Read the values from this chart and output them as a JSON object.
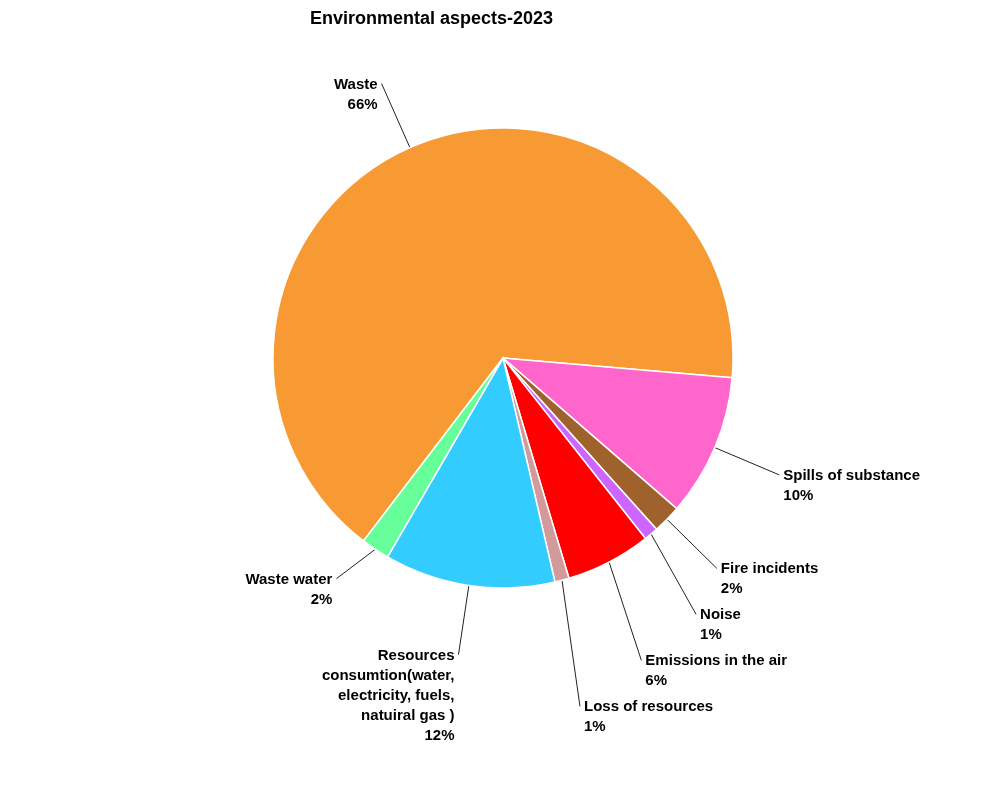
{
  "chart_data": {
    "type": "pie",
    "title": "Environmental aspects-2023",
    "categories": [
      "Waste",
      "Spills of substance",
      "Fire incidents",
      "Noise",
      "Emissions in the air",
      "Loss of resources",
      "Resources consumtion(water, electricity, fuels, natuiral gas )",
      "Waste water"
    ],
    "values": [
      66,
      10,
      2,
      1,
      6,
      1,
      12,
      2
    ],
    "value_labels": [
      "66%",
      "10%",
      "2%",
      "1%",
      "6%",
      "1%",
      "12%",
      "2%"
    ],
    "colors": [
      "#f79a33",
      "#ff66cc",
      "#a0622d",
      "#cc66ff",
      "#ff0000",
      "#d29a9a",
      "#33ccff",
      "#66ff99"
    ],
    "legend": false
  }
}
